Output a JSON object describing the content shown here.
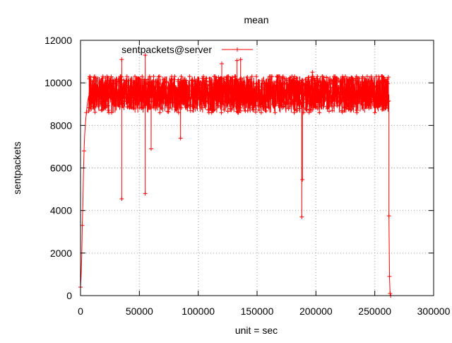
{
  "chart_data": {
    "type": "line",
    "title": "mean",
    "xlabel": "unit = sec",
    "ylabel": "sentpackets",
    "xlim": [
      0,
      300000
    ],
    "ylim": [
      0,
      12000
    ],
    "x_ticks": [
      0,
      50000,
      100000,
      150000,
      200000,
      250000,
      300000
    ],
    "y_ticks": [
      0,
      2000,
      4000,
      6000,
      8000,
      10000,
      12000
    ],
    "x_tick_labels": [
      "0",
      "50000",
      "100000",
      "150000",
      "200000",
      "250000",
      "300000"
    ],
    "y_tick_labels": [
      "0",
      "2000",
      "4000",
      "6000",
      "8000",
      "10000",
      "12000"
    ],
    "grid": true,
    "legend_position": "top-left",
    "series": [
      {
        "name": "sentpackets@server",
        "color": "#ff0000",
        "marker": "plus",
        "ramp": [
          [
            0,
            400
          ],
          [
            500,
            900
          ],
          [
            1000,
            1800
          ],
          [
            1500,
            3300
          ],
          [
            2000,
            4200
          ],
          [
            2500,
            5800
          ],
          [
            3000,
            6800
          ],
          [
            3500,
            7500
          ],
          [
            4000,
            8000
          ],
          [
            5000,
            8600
          ],
          [
            6000,
            9100
          ],
          [
            7000,
            9400
          ]
        ],
        "steady_x_range": [
          7000,
          262000
        ],
        "steady_band": [
          8600,
          10300
        ],
        "steady_mean": 9500,
        "dips": [
          [
            35000,
            4550
          ],
          [
            55000,
            4800
          ],
          [
            60000,
            6900
          ],
          [
            85000,
            7400
          ],
          [
            188000,
            3700
          ],
          [
            188500,
            5450
          ],
          [
            262000,
            3750
          ],
          [
            262500,
            900
          ],
          [
            263000,
            100
          ],
          [
            263500,
            0
          ]
        ],
        "spikes": [
          [
            35000,
            11100
          ],
          [
            55000,
            11300
          ],
          [
            120000,
            10900
          ],
          [
            133000,
            11050
          ],
          [
            136000,
            11100
          ],
          [
            197000,
            10500
          ]
        ]
      }
    ]
  }
}
